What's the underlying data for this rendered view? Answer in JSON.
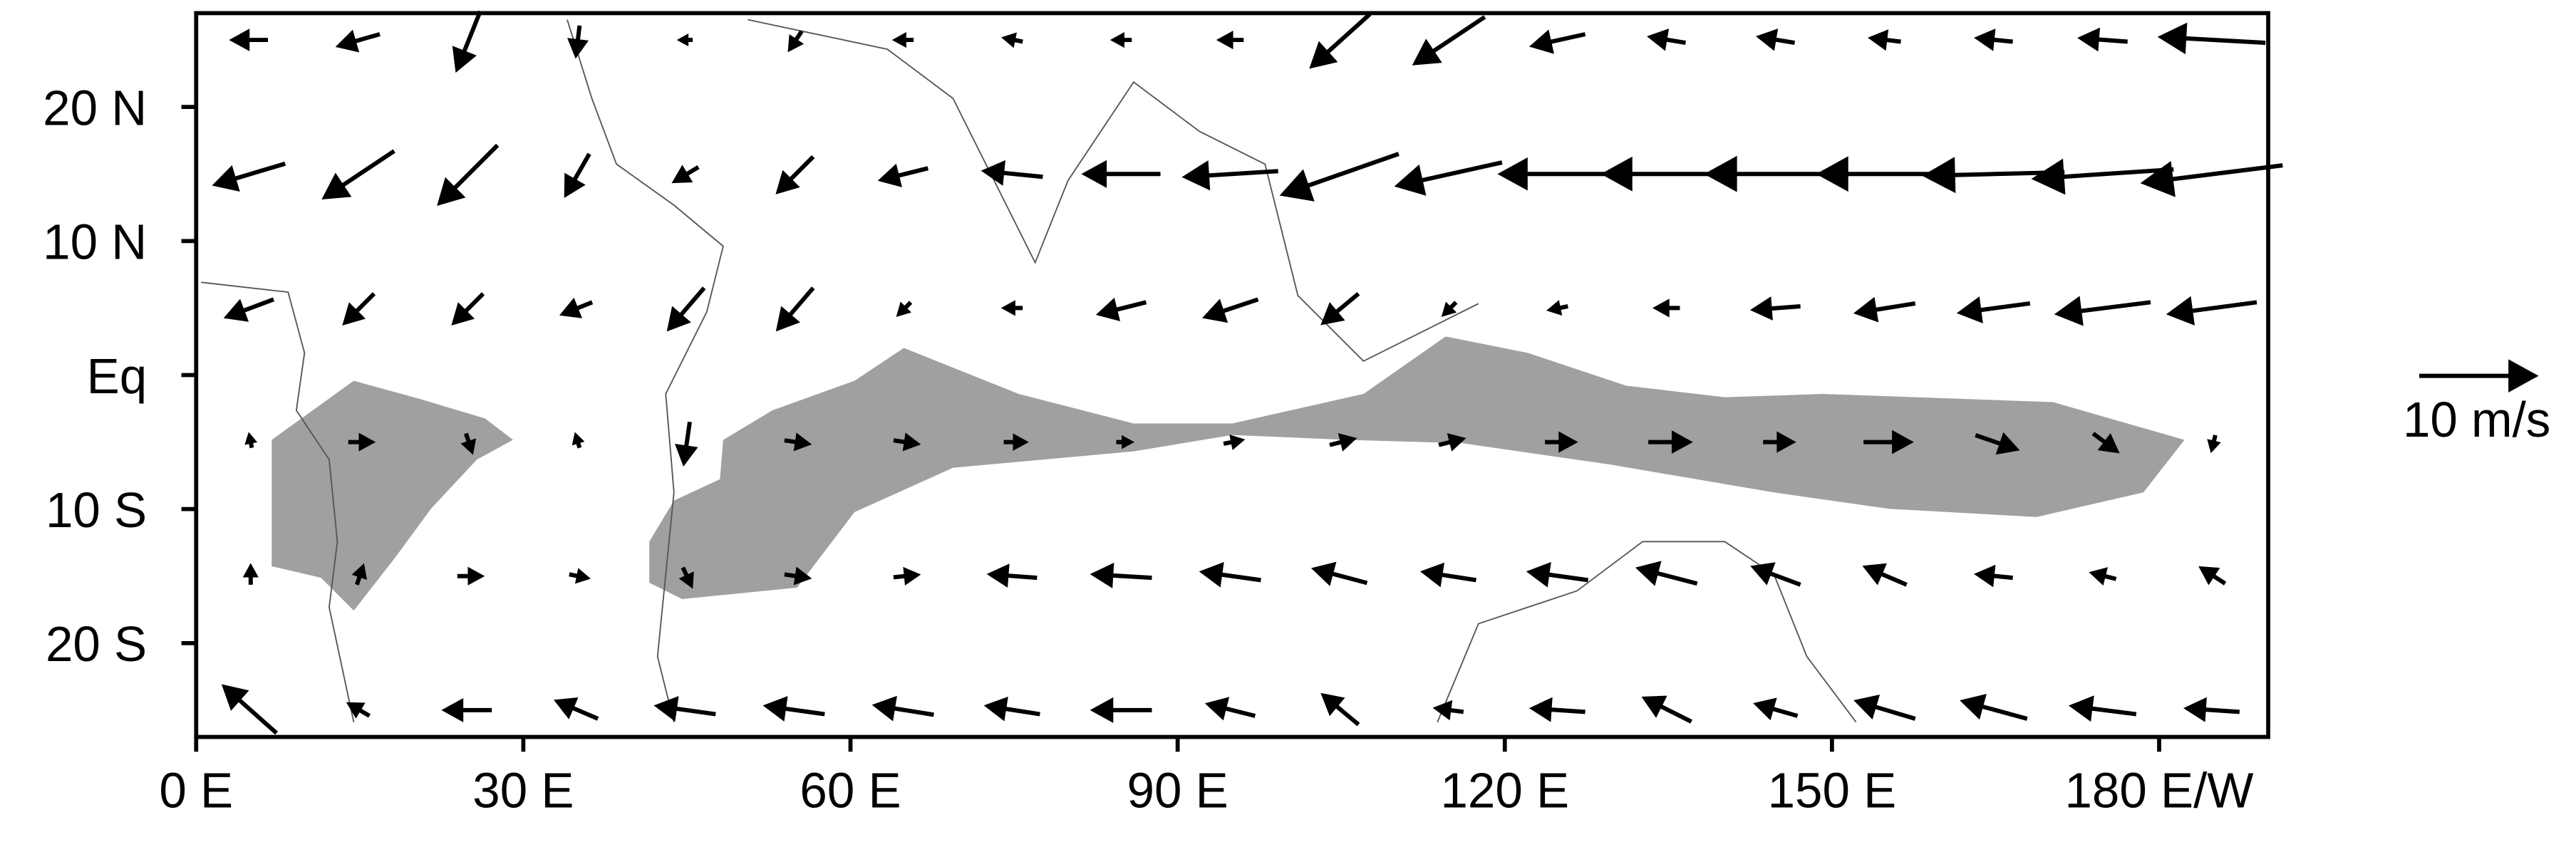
{
  "chart_data": {
    "type": "quiver",
    "xlim": [
      0,
      190
    ],
    "ylim": [
      -27,
      27
    ],
    "xticks": [
      {
        "value": 0,
        "label": "0 E"
      },
      {
        "value": 30,
        "label": "30 E"
      },
      {
        "value": 60,
        "label": "60 E"
      },
      {
        "value": 90,
        "label": "90 E"
      },
      {
        "value": 120,
        "label": "120 E"
      },
      {
        "value": 150,
        "label": "150 E"
      },
      {
        "value": 180,
        "label": "180 E/W"
      }
    ],
    "yticks": [
      {
        "value": -20,
        "label": "20 S"
      },
      {
        "value": -10,
        "label": "10 S"
      },
      {
        "value": 0,
        "label": "Eq"
      },
      {
        "value": 10,
        "label": "10 N"
      },
      {
        "value": 20,
        "label": "20 N"
      }
    ],
    "lon": [
      5,
      15,
      25,
      35,
      45,
      55,
      65,
      75,
      85,
      95,
      105,
      115,
      125,
      135,
      145,
      155,
      165,
      175,
      185
    ],
    "lat": [
      25,
      15,
      5,
      -5,
      -15,
      -25
    ],
    "u": [
      [
        -3,
        -3.5,
        -2,
        -0.3,
        -1,
        -1,
        -1.5,
        -1.5,
        -1.5,
        -2,
        -5,
        -6,
        -4.5,
        -3,
        -3,
        -2.5,
        -3,
        -4,
        -9
      ],
      [
        -6,
        -6,
        -5,
        -2,
        -2,
        -3,
        -4,
        -5,
        -6.5,
        -8,
        -10,
        -9,
        -10,
        -11,
        -12,
        -11.5,
        -12,
        -12,
        -12
      ],
      [
        -4,
        -2.5,
        -2.5,
        -2.5,
        -3,
        -3,
        -1,
        -1.5,
        -4,
        -4.5,
        -3,
        -1,
        -1.5,
        -2,
        -4,
        -5,
        -6,
        -8,
        -7.5
      ],
      [
        -0.2,
        2,
        0.5,
        -0.3,
        -0.5,
        2,
        2,
        1.8,
        1.2,
        1.5,
        2,
        2,
        2.5,
        3.5,
        2.5,
        4,
        3.5,
        2,
        -0.3
      ],
      [
        0,
        0.5,
        2,
        1.5,
        0.7,
        2,
        2,
        -4,
        -5,
        -5,
        -4.5,
        -4.5,
        -5,
        -5,
        -4,
        -3.5,
        -3,
        -2,
        -2
      ],
      [
        -4.5,
        -1.7,
        -4,
        -3.5,
        -5,
        -5,
        -5,
        -4.5,
        -5,
        -4,
        -3,
        -2.3,
        -4.5,
        -4,
        -3.5,
        -5,
        -5.5,
        -5.5,
        -4.5
      ]
    ],
    "v": [
      [
        0,
        -1,
        -5,
        -2.5,
        0,
        -1.5,
        0,
        0.3,
        0,
        0,
        -4.5,
        -4,
        -1,
        0.5,
        0.5,
        0.3,
        0.3,
        0.3,
        0.5
      ],
      [
        -1.8,
        -4,
        -5,
        -3.5,
        -1.2,
        -3,
        -1,
        0.5,
        0,
        -0.5,
        -3.5,
        -2,
        0,
        0,
        0,
        0,
        -0.3,
        -0.8,
        -1.5
      ],
      [
        -1.5,
        -2.5,
        -2.5,
        -1,
        -3.5,
        -3.5,
        -1,
        0,
        -1,
        -1.5,
        -2.5,
        -1,
        -0.3,
        0,
        -0.3,
        -0.8,
        -0.8,
        -1,
        -1
      ],
      [
        1,
        0,
        -1.5,
        1,
        -3.5,
        -0.3,
        -0.3,
        0,
        0,
        0.3,
        0.5,
        0.5,
        0,
        0,
        0,
        0,
        -1.2,
        -1.5,
        -1.2
      ],
      [
        1.5,
        1.5,
        0,
        -0.3,
        -1.5,
        -0.3,
        0.2,
        0.3,
        0.3,
        0.7,
        1.2,
        0.7,
        0.7,
        1.3,
        1.5,
        1.5,
        0.3,
        0.5,
        1.3
      ],
      [
        4,
        1,
        0,
        1.5,
        0.7,
        0.7,
        0.8,
        0.7,
        0,
        1,
        2.5,
        0.3,
        0.3,
        2,
        1,
        1.5,
        1.5,
        0.7,
        0.3
      ]
    ],
    "key": {
      "value": 10,
      "label": "10 m/s"
    }
  }
}
